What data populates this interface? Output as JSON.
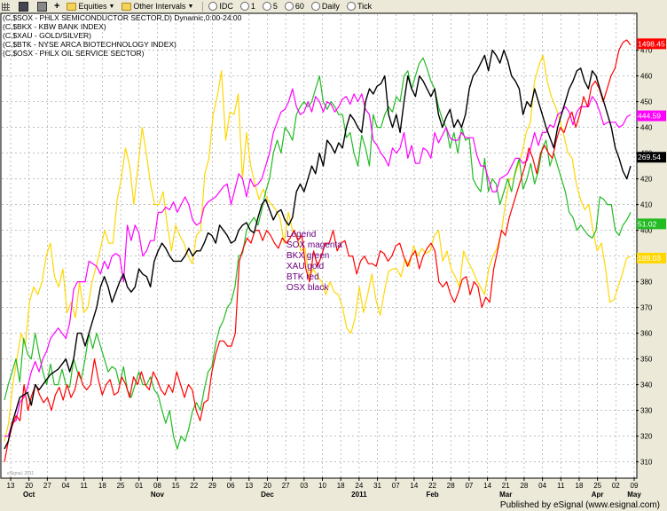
{
  "toolbar": {
    "items": [
      "Equities",
      "Other Intervals",
      "IDC",
      "1",
      "5",
      "60",
      "Daily",
      "Tick"
    ]
  },
  "header_lines": [
    "(C,$SOX - PHLX SEMICONDUCTOR SECTOR,D) Dynamic,0:00-24:00",
    "(C,$BKX - KBW BANK INDEX)",
    "(C,$XAU - GOLD/SILVER)",
    "(C,$BTK - NYSE ARCA BIOTECHNOLOGY INDEX)",
    "(C,$OSX - PHLX OIL SERVICE SECTOR)"
  ],
  "footer": "Published by eSignal (www.esignal.com)",
  "watermark": "eSignal, 2011",
  "chart_data": {
    "type": "line",
    "ylim": [
      304,
      484
    ],
    "y_ticks": [
      310,
      320,
      330,
      340,
      350,
      360,
      370,
      380,
      390,
      400,
      410,
      420,
      430,
      440,
      450,
      460,
      470
    ],
    "x_day_labels": [
      "13",
      "20",
      "27",
      "04",
      "11",
      "18",
      "25",
      "01",
      "08",
      "15",
      "22",
      "29",
      "06",
      "13",
      "20",
      "27",
      "03",
      "10",
      "18",
      "24",
      "31",
      "07",
      "14",
      "22",
      "28",
      "07",
      "14",
      "21",
      "28",
      "04",
      "11",
      "18",
      "25",
      "02",
      "09"
    ],
    "x_month_labels": [
      "Oct",
      "Nov",
      "Dec",
      "2011",
      "Feb",
      "Mar",
      "Apr",
      "May"
    ],
    "grid": true,
    "legend": {
      "title": "Legend",
      "entries": [
        {
          "text": "SOX magenta",
          "color": "#ff00ff"
        },
        {
          "text": "BKX green",
          "color": "#22bb22"
        },
        {
          "text": "XAU gold",
          "color": "#ffd700"
        },
        {
          "text": "BTK red",
          "color": "#ff0000"
        },
        {
          "text": "OSX black",
          "color": "#000000"
        }
      ]
    },
    "last_value_tags": [
      {
        "text": "1498.45",
        "color": "#ff0000",
        "text_color": "#ffffff"
      },
      {
        "text": "444.59",
        "color": "#ff00ff",
        "text_color": "#ffffff"
      },
      {
        "text": "269.54",
        "color": "#000000",
        "text_color": "#ffffff"
      },
      {
        "text": "51.02",
        "color": "#22bb22",
        "text_color": "#ffffff"
      },
      {
        "text": "189.03",
        "color": "#ffd700",
        "text_color": "#ffffff"
      }
    ],
    "series": [
      {
        "name": "SOX",
        "color": "#ff00ff",
        "values": [
          320,
          320,
          325,
          326,
          333,
          335,
          339,
          345,
          349,
          345,
          350,
          353,
          358,
          360,
          362,
          360,
          358,
          364,
          377,
          380,
          380,
          380,
          388,
          387,
          386,
          383,
          388,
          385,
          390,
          391,
          390,
          380,
          402,
          396,
          402,
          399,
          390,
          392,
          396,
          396,
          407,
          407,
          409,
          408,
          411,
          407,
          410,
          413,
          410,
          404,
          402,
          403,
          409,
          411,
          412,
          413,
          415,
          417,
          418,
          410,
          416,
          422,
          420,
          413,
          420,
          417,
          418,
          420,
          425,
          430,
          438,
          442,
          446,
          447,
          450,
          455,
          448,
          445,
          446,
          450,
          446,
          452,
          450,
          446,
          450,
          449,
          446,
          448,
          451,
          452,
          449,
          453,
          450,
          453,
          447,
          445,
          435,
          433,
          430,
          428,
          425,
          432,
          430,
          432,
          438,
          428,
          433,
          426,
          426,
          432,
          431,
          428,
          438,
          434,
          437,
          440,
          436,
          435,
          435,
          438,
          436,
          436,
          436,
          429,
          425,
          425,
          420,
          415,
          415,
          420,
          421,
          422,
          425,
          428,
          428,
          426,
          427,
          432,
          438,
          433,
          438,
          438,
          441,
          440,
          445,
          446,
          448,
          446,
          441,
          446,
          448,
          448,
          448,
          452,
          450,
          446,
          441,
          442,
          442,
          442,
          440,
          441,
          444,
          445
        ]
      },
      {
        "name": "BKX",
        "color": "#22bb22",
        "values": [
          334,
          340,
          345,
          350,
          341,
          358,
          352,
          350,
          360,
          352,
          345,
          340,
          348,
          340,
          340,
          346,
          340,
          339,
          350,
          345,
          342,
          350,
          360,
          354,
          360,
          355,
          350,
          345,
          347,
          346,
          340,
          347,
          338,
          335,
          340,
          345,
          340,
          340,
          343,
          338,
          336,
          330,
          325,
          330,
          320,
          315,
          320,
          318,
          323,
          330,
          333,
          330,
          338,
          345,
          347,
          356,
          362,
          365,
          370,
          372,
          378,
          390,
          391,
          400,
          403,
          405,
          402,
          408,
          415,
          420,
          430,
          435,
          430,
          440,
          438,
          435,
          445,
          448,
          450,
          448,
          450,
          455,
          460,
          450,
          447,
          450,
          448,
          445,
          445,
          436,
          438,
          430,
          425,
          437,
          432,
          425,
          445,
          440,
          440,
          445,
          448,
          446,
          452,
          450,
          460,
          462,
          455,
          460,
          465,
          467,
          463,
          458,
          455,
          448,
          443,
          440,
          432,
          438,
          430,
          440,
          435,
          436,
          420,
          417,
          415,
          428,
          415,
          420,
          418,
          410,
          415,
          420,
          415,
          423,
          428,
          416,
          420,
          426,
          418,
          423,
          432,
          435,
          425,
          430,
          425,
          420,
          415,
          407,
          405,
          400,
          402,
          400,
          398,
          397,
          400,
          413,
          412,
          410,
          410,
          400,
          398,
          402,
          404,
          407
        ]
      },
      {
        "name": "XAU",
        "color": "#ffd700",
        "values": [
          318,
          325,
          340,
          350,
          360,
          355,
          372,
          378,
          375,
          380,
          390,
          395,
          382,
          378,
          385,
          368,
          372,
          366,
          380,
          368,
          370,
          380,
          386,
          393,
          400,
          395,
          395,
          412,
          420,
          432,
          425,
          410,
          425,
          440,
          430,
          418,
          410,
          410,
          415,
          402,
          392,
          402,
          398,
          395,
          390,
          387,
          398,
          400,
          422,
          428,
          445,
          452,
          462,
          435,
          446,
          445,
          453,
          420,
          438,
          425,
          418,
          412,
          416,
          412,
          410,
          408,
          405,
          395,
          407,
          400,
          398,
          392,
          393,
          382,
          385,
          382,
          380,
          375,
          380,
          376,
          375,
          370,
          362,
          360,
          366,
          378,
          368,
          375,
          383,
          373,
          367,
          376,
          384,
          385,
          385,
          382,
          389,
          386,
          394,
          390,
          393,
          391,
          392,
          398,
          400,
          388,
          392,
          385,
          382,
          378,
          392,
          388,
          385,
          381,
          378,
          375,
          385,
          390,
          393,
          399,
          410,
          420,
          420,
          425,
          430,
          438,
          442,
          458,
          464,
          468,
          458,
          452,
          448,
          443,
          437,
          430,
          428,
          418,
          412,
          408,
          410,
          400,
          392,
          395,
          385,
          372,
          373,
          378,
          383,
          389,
          390
        ]
      },
      {
        "name": "BTK",
        "color": "#ff0000",
        "values": [
          310,
          318,
          324,
          328,
          326,
          340,
          330,
          336,
          340,
          336,
          333,
          335,
          330,
          336,
          339,
          334,
          340,
          335,
          338,
          345,
          340,
          338,
          340,
          350,
          342,
          336,
          340,
          342,
          336,
          337,
          343,
          340,
          335,
          343,
          340,
          345,
          340,
          338,
          345,
          342,
          338,
          336,
          340,
          337,
          345,
          340,
          335,
          340,
          338,
          330,
          326,
          333,
          334,
          345,
          352,
          357,
          357,
          355,
          355,
          360,
          388,
          393,
          397,
          395,
          400,
          400,
          396,
          400,
          398,
          395,
          393,
          397,
          395,
          397,
          400,
          396,
          398,
          385,
          380,
          392,
          386,
          390,
          395,
          395,
          400,
          392,
          395,
          396,
          390,
          390,
          383,
          388,
          390,
          387,
          387,
          386,
          392,
          391,
          388,
          390,
          394,
          395,
          390,
          386,
          390,
          392,
          385,
          390,
          393,
          395,
          392,
          380,
          378,
          380,
          375,
          372,
          376,
          381,
          382,
          375,
          380,
          378,
          370,
          374,
          372,
          385,
          392,
          400,
          398,
          405,
          410,
          415,
          420,
          425,
          432,
          428,
          422,
          430,
          433,
          430,
          428,
          435,
          440,
          438,
          443,
          446,
          440,
          445,
          452,
          448,
          456,
          458,
          455,
          450,
          455,
          460,
          463,
          470,
          473,
          474,
          472
        ]
      },
      {
        "name": "OSX",
        "color": "#000000",
        "values": [
          315,
          318,
          325,
          330,
          335,
          336,
          337,
          332,
          340,
          338,
          340,
          342,
          344,
          345,
          346,
          348,
          350,
          345,
          350,
          360,
          360,
          355,
          360,
          365,
          370,
          378,
          382,
          378,
          372,
          376,
          380,
          383,
          378,
          376,
          378,
          385,
          383,
          382,
          378,
          388,
          392,
          395,
          393,
          390,
          388,
          388,
          388,
          390,
          393,
          390,
          392,
          392,
          395,
          399,
          398,
          395,
          402,
          400,
          398,
          395,
          396,
          400,
          402,
          403,
          400,
          399,
          405,
          410,
          412,
          408,
          404,
          407,
          408,
          404,
          402,
          405,
          415,
          418,
          415,
          420,
          425,
          422,
          430,
          425,
          435,
          433,
          430,
          434,
          432,
          440,
          445,
          443,
          440,
          438,
          450,
          455,
          453,
          456,
          457,
          460,
          445,
          440,
          445,
          438,
          450,
          460,
          455,
          452,
          460,
          458,
          455,
          452,
          455,
          445,
          440,
          444,
          447,
          440,
          443,
          440,
          445,
          455,
          460,
          462,
          465,
          468,
          462,
          470,
          468,
          465,
          470,
          466,
          460,
          458,
          455,
          445,
          450,
          448,
          455,
          450,
          445,
          440,
          436,
          432,
          440,
          445,
          450,
          455,
          458,
          462,
          463,
          458,
          455,
          462,
          460,
          455,
          450,
          445,
          440,
          432,
          428,
          423,
          420,
          425
        ]
      }
    ]
  }
}
